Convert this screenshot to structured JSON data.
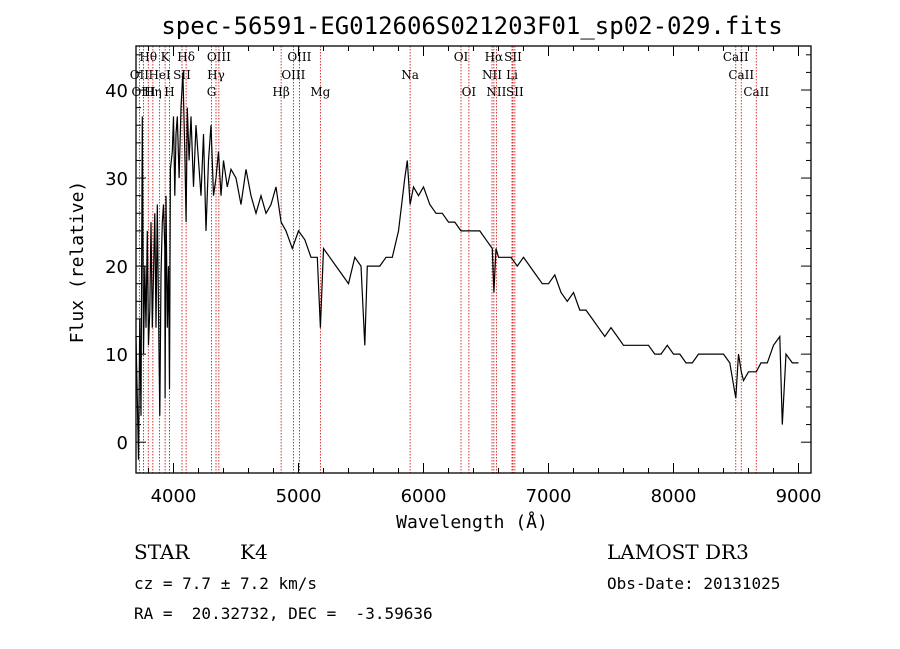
{
  "chart_data": {
    "type": "line",
    "title": "spec-56591-EG012606S021203F01_sp02-029.fits",
    "xlabel": "Wavelength (Å)",
    "ylabel": "Flux (relative)",
    "xlim": [
      3700,
      9100
    ],
    "ylim": [
      -3.5,
      45
    ],
    "xticks": [
      4000,
      5000,
      6000,
      7000,
      8000,
      9000
    ],
    "yticks": [
      0,
      10,
      20,
      30,
      40
    ],
    "series": [
      {
        "x": [
          3700,
          3710,
          3720,
          3730,
          3740,
          3750,
          3760,
          3770,
          3780,
          3790,
          3800,
          3810,
          3820,
          3830,
          3840,
          3850,
          3860,
          3870,
          3880,
          3890,
          3900,
          3910,
          3920,
          3930,
          3933,
          3940,
          3950,
          3960,
          3968,
          3975,
          3990,
          4000,
          4010,
          4020,
          4030,
          4045,
          4060,
          4075,
          4090,
          4101,
          4110,
          4125,
          4140,
          4160,
          4180,
          4200,
          4220,
          4240,
          4260,
          4280,
          4300,
          4320,
          4340,
          4360,
          4380,
          4400,
          4430,
          4460,
          4500,
          4540,
          4580,
          4620,
          4660,
          4700,
          4740,
          4780,
          4820,
          4861,
          4900,
          4950,
          5000,
          5050,
          5100,
          5150,
          5175,
          5200,
          5250,
          5300,
          5350,
          5400,
          5450,
          5500,
          5530,
          5550,
          5600,
          5650,
          5700,
          5750,
          5800,
          5850,
          5870,
          5893,
          5920,
          5960,
          6000,
          6050,
          6100,
          6150,
          6200,
          6250,
          6300,
          6350,
          6400,
          6450,
          6500,
          6550,
          6563,
          6580,
          6600,
          6650,
          6700,
          6750,
          6800,
          6850,
          6900,
          6950,
          7000,
          7050,
          7100,
          7150,
          7200,
          7250,
          7300,
          7350,
          7400,
          7450,
          7500,
          7550,
          7600,
          7650,
          7700,
          7750,
          7800,
          7850,
          7900,
          7950,
          8000,
          8050,
          8100,
          8150,
          8200,
          8250,
          8300,
          8350,
          8400,
          8450,
          8498,
          8520,
          8542,
          8560,
          8600,
          8662,
          8700,
          8750,
          8800,
          8850,
          8870,
          8900,
          8950,
          9000
        ],
        "y": [
          12,
          5,
          -2,
          14,
          3,
          37,
          10,
          20,
          13,
          24,
          11,
          15,
          25,
          13,
          19,
          26,
          13,
          27,
          15,
          3,
          19,
          25,
          27,
          22,
          5,
          28,
          13,
          20,
          6,
          31,
          33,
          37,
          28,
          35,
          37,
          30,
          38,
          42,
          33,
          25,
          38,
          32,
          37,
          29,
          36,
          32,
          28,
          35,
          24,
          32,
          36,
          28,
          30,
          33,
          28,
          32,
          29,
          31,
          30,
          27,
          31,
          28,
          26,
          28,
          26,
          27,
          29,
          25,
          24,
          22,
          24,
          23,
          21,
          21,
          13,
          22,
          21,
          20,
          19,
          18,
          21,
          20,
          11,
          20,
          20,
          20,
          21,
          21,
          24,
          30,
          32,
          27,
          29,
          28,
          29,
          27,
          26,
          26,
          25,
          25,
          24,
          24,
          24,
          24,
          23,
          22,
          17,
          22,
          21,
          21,
          21,
          20,
          21,
          20,
          19,
          18,
          18,
          19,
          17,
          16,
          17,
          15,
          15,
          14,
          13,
          12,
          13,
          12,
          11,
          11,
          11,
          11,
          11,
          10,
          10,
          11,
          10,
          10,
          9,
          9,
          10,
          10,
          10,
          10,
          10,
          9,
          5,
          10,
          8,
          7,
          8,
          8,
          9,
          9,
          11,
          12,
          2,
          10,
          9,
          9
        ]
      }
    ],
    "line_labels": [
      {
        "label": "Hθ",
        "w": 3798,
        "row": 0
      },
      {
        "label": "K",
        "w": 3933,
        "row": 0
      },
      {
        "label": "Hδ",
        "w": 4101,
        "row": 0
      },
      {
        "label": "OIII",
        "w": 4363,
        "row": 0
      },
      {
        "label": "OIII",
        "w": 5007,
        "row": 0
      },
      {
        "label": "OI",
        "w": 6300,
        "row": 0
      },
      {
        "label": "Hα",
        "w": 6563,
        "row": 0
      },
      {
        "label": "SII",
        "w": 6716,
        "row": 0
      },
      {
        "label": "CaII",
        "w": 8498,
        "row": 0
      },
      {
        "label": "OII",
        "w": 3727,
        "row": 1
      },
      {
        "label": "HeI",
        "w": 3889,
        "row": 1
      },
      {
        "label": "SII",
        "w": 4068,
        "row": 1
      },
      {
        "label": "Hγ",
        "w": 4340,
        "row": 1
      },
      {
        "label": "OIII",
        "w": 4959,
        "row": 1
      },
      {
        "label": "Na",
        "w": 5893,
        "row": 1
      },
      {
        "label": "NII",
        "w": 6548,
        "row": 1
      },
      {
        "label": "Li",
        "w": 6708,
        "row": 1
      },
      {
        "label": "CaII",
        "w": 8542,
        "row": 1
      },
      {
        "label": "OIII",
        "w": 3760,
        "row": 2
      },
      {
        "label": "Hη",
        "w": 3835,
        "row": 2
      },
      {
        "label": "H",
        "w": 3968,
        "row": 2
      },
      {
        "label": "G",
        "w": 4304,
        "row": 2
      },
      {
        "label": "Hβ",
        "w": 4861,
        "row": 2
      },
      {
        "label": "Mg",
        "w": 5175,
        "row": 2
      },
      {
        "label": "OI",
        "w": 6363,
        "row": 2
      },
      {
        "label": "NII",
        "w": 6583,
        "row": 2
      },
      {
        "label": "SII",
        "w": 6731,
        "row": 2
      },
      {
        "label": "CaII",
        "w": 8662,
        "row": 2
      }
    ],
    "line_marker_color": "#cc0000",
    "spectrum_color": "#000000"
  },
  "info": {
    "class_label": "STAR",
    "subclass": "K4",
    "survey": "LAMOST DR3",
    "cz": "cz = 7.7 ± 7.2 km/s",
    "obs_date": "Obs-Date: 20131025",
    "radec": "RA =  20.32732, DEC =  -3.59636"
  }
}
